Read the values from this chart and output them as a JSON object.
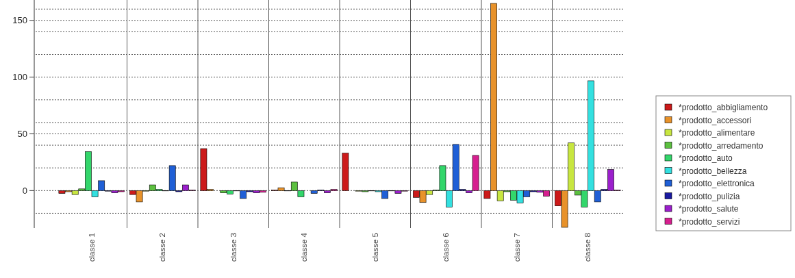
{
  "chart_data": {
    "type": "bar",
    "categories": [
      "classe 1",
      "classe 2",
      "classe 3",
      "classe 4",
      "classe 5",
      "classe 6",
      "classe 7",
      "classe 8"
    ],
    "series": [
      {
        "name": "*prodotto_abbigliamento",
        "color": "#cc1a1a",
        "values": [
          -2.5,
          -3.5,
          37,
          0.5,
          33,
          -6,
          -7,
          -13.5
        ]
      },
      {
        "name": "*prodotto_accessori",
        "color": "#e8922a",
        "values": [
          -1,
          -10,
          1,
          2.5,
          null,
          -10.5,
          165,
          -32.4
        ]
      },
      {
        "name": "*prodotto_alimentare",
        "color": "#c8e640",
        "values": [
          -3.5,
          -0.5,
          null,
          0,
          -0.5,
          -3.5,
          -9,
          42
        ]
      },
      {
        "name": "*prodotto_arredamento",
        "color": "#5cc040",
        "values": [
          1.5,
          5,
          -2,
          7.5,
          -1,
          0.5,
          -1,
          -4
        ]
      },
      {
        "name": "*prodotto_auto",
        "color": "#33d66b",
        "values": [
          34.4,
          1,
          -3,
          -5.5,
          0,
          22,
          -8.5,
          -14.5
        ]
      },
      {
        "name": "*prodotto_bellezza",
        "color": "#33e0e0",
        "values": [
          -5.5,
          0,
          0,
          null,
          -1,
          -14.5,
          -11,
          96.8
        ]
      },
      {
        "name": "*prodotto_elettronica",
        "color": "#1f5fd6",
        "values": [
          8.7,
          22,
          -7,
          -2.5,
          -7,
          40.7,
          -5.5,
          -10
        ]
      },
      {
        "name": "*prodotto_pulizia",
        "color": "#1a1aa0",
        "values": [
          -0.5,
          -1,
          -1,
          0.5,
          0,
          1,
          -1,
          1
        ]
      },
      {
        "name": "*prodotto_salute",
        "color": "#9b1fcc",
        "values": [
          -2,
          5,
          -2,
          -2,
          -2.5,
          -2,
          -1.5,
          18.6
        ]
      },
      {
        "name": "*prodotto_servizi",
        "color": "#d61f8f",
        "values": [
          -1,
          0.5,
          -1.5,
          1,
          -0.5,
          31,
          -5,
          0.5
        ]
      }
    ],
    "ylim": [
      -33,
      168
    ],
    "yticks": [
      {
        "value": -20,
        "label": null
      },
      0,
      {
        "value": 20,
        "label": null
      },
      {
        "value": 40,
        "label": null
      },
      50,
      {
        "value": 60,
        "label": null
      },
      {
        "value": 80,
        "label": null
      },
      100,
      {
        "value": 120,
        "label": null
      },
      {
        "value": 140,
        "label": null
      },
      150,
      {
        "value": 160,
        "label": null
      }
    ],
    "grid": true,
    "legend": "right"
  }
}
